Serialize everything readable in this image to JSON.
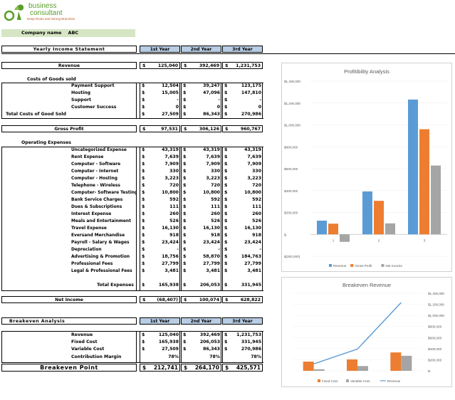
{
  "logo": {
    "line1": "business",
    "line2": "consultant",
    "tagline": "Deep Roots and Strong Branches",
    "brand_mark": "oak"
  },
  "company": {
    "label": "Company name",
    "value": "ABC"
  },
  "income": {
    "title": "Yearly Income Statement",
    "years": [
      "1st Year",
      "2nd Year",
      "3rd Year"
    ],
    "revenue": {
      "label": "Revenue",
      "values": [
        "125,040",
        "392,469",
        "1,231,753"
      ]
    },
    "costs_heading": "Costs of Goods sold",
    "cogs_items": [
      {
        "label": "Payment Support",
        "values": [
          "12,504",
          "39,247",
          "123,175"
        ]
      },
      {
        "label": "Hosting",
        "values": [
          "15,005",
          "47,096",
          "147,810"
        ]
      },
      {
        "label": "Support",
        "values": [
          "-",
          "-",
          "-"
        ]
      },
      {
        "label": "Customer Success",
        "values": [
          "0",
          "0",
          "0"
        ]
      }
    ],
    "total_cogs": {
      "label": "Total Costs of Good Sold",
      "values": [
        "27,509",
        "86,343",
        "270,986"
      ]
    },
    "gross_profit": {
      "label": "Gross Profit",
      "values": [
        "97,531",
        "306,126",
        "960,767"
      ]
    },
    "opex_heading": "Operating Expenses",
    "opex_items": [
      {
        "label": "Uncategorized Expense",
        "values": [
          "43,319",
          "43,319",
          "43,319"
        ]
      },
      {
        "label": "Rent Expense",
        "values": [
          "7,639",
          "7,639",
          "7,639"
        ]
      },
      {
        "label": "Computer - Software",
        "values": [
          "7,909",
          "7,909",
          "7,909"
        ]
      },
      {
        "label": "Computer - Internet",
        "values": [
          "330",
          "330",
          "330"
        ]
      },
      {
        "label": "Computer - Hosting",
        "values": [
          "3,223",
          "3,223",
          "3,223"
        ]
      },
      {
        "label": "Telephone - Wireless",
        "values": [
          "720",
          "720",
          "720"
        ]
      },
      {
        "label": "Computer- Software Testing",
        "values": [
          "10,800",
          "10,800",
          "10,800"
        ]
      },
      {
        "label": "Bank Service Charges",
        "values": [
          "592",
          "592",
          "592"
        ]
      },
      {
        "label": "Dues & Subscriptions",
        "values": [
          "111",
          "111",
          "111"
        ]
      },
      {
        "label": "Interest Expense",
        "values": [
          "260",
          "260",
          "260"
        ]
      },
      {
        "label": "Meals and Entertainment",
        "values": [
          "526",
          "526",
          "526"
        ]
      },
      {
        "label": "Travel Expense",
        "values": [
          "16,130",
          "16,130",
          "16,130"
        ]
      },
      {
        "label": "Eversand Merchandise",
        "values": [
          "918",
          "918",
          "918"
        ]
      },
      {
        "label": "Payroll - Salary & Wages",
        "values": [
          "23,424",
          "23,424",
          "23,424"
        ]
      },
      {
        "label": "Depreciation",
        "values": [
          "-",
          "-",
          "-"
        ]
      },
      {
        "label": "Advertising & Promotion",
        "values": [
          "18,756",
          "58,870",
          "184,763"
        ]
      },
      {
        "label": "Professional Fees",
        "values": [
          "27,799",
          "27,799",
          "27,799"
        ]
      },
      {
        "label": "Legal & Professional Fees",
        "values": [
          "3,481",
          "3,481",
          "3,481"
        ]
      }
    ],
    "total_expenses": {
      "label": "Total Expenses",
      "values": [
        "165,938",
        "206,053",
        "331,945"
      ]
    },
    "net_income": {
      "label": "Net Income",
      "values": [
        "(68,407)",
        "100,074",
        "628,822"
      ]
    }
  },
  "breakeven": {
    "title": "Breakeven Analysis",
    "years": [
      "1st Year",
      "2nd Year",
      "3rd Year"
    ],
    "rows": [
      {
        "label": "Revenue",
        "values": [
          "125,040",
          "392,469",
          "1,231,753"
        ]
      },
      {
        "label": "Fixed Cost",
        "values": [
          "165,938",
          "206,053",
          "331,945"
        ]
      },
      {
        "label": "Variable Cost",
        "values": [
          "27,509",
          "86,343",
          "270,986"
        ]
      }
    ],
    "margin": {
      "label": "Contribution Margin",
      "values": [
        "78%",
        "78%",
        "78%"
      ]
    },
    "point": {
      "label": "Breakeven Point",
      "values": [
        "212,741",
        "264,170",
        "425,571"
      ]
    }
  },
  "chart_data": [
    {
      "type": "bar",
      "title": "Profitibility Analysis",
      "categories": [
        "1",
        "2",
        "3"
      ],
      "series": [
        {
          "name": "Revenue",
          "values": [
            125040,
            392469,
            1231753
          ],
          "color": "#5b9bd5"
        },
        {
          "name": "Gross Profit",
          "values": [
            97531,
            306126,
            960767
          ],
          "color": "#ed7d31"
        },
        {
          "name": "Net Income",
          "values": [
            -68407,
            100074,
            628822
          ],
          "color": "#a5a5a5"
        }
      ],
      "ylim": [
        -200000,
        1400000
      ],
      "yticks": [
        "$1,400,000",
        "$1,200,000",
        "$1,000,000",
        "$800,000",
        "$600,000",
        "$400,000",
        "$200,000",
        "$-",
        "$(200,000)"
      ],
      "legend": "bottom"
    },
    {
      "type": "bar",
      "title": "Breakeven Revenue",
      "categories": [
        "1",
        "2",
        "3"
      ],
      "series": [
        {
          "name": "Fixed Cost",
          "values": [
            165938,
            206053,
            331945
          ],
          "color": "#ed7d31",
          "kind": "bar"
        },
        {
          "name": "Variable Cost",
          "values": [
            27509,
            86343,
            270986
          ],
          "color": "#a5a5a5",
          "kind": "bar"
        },
        {
          "name": "Revenue",
          "values": [
            125040,
            392469,
            1231753
          ],
          "color": "#5b9bd5",
          "kind": "line"
        }
      ],
      "ylim": [
        0,
        1400000
      ],
      "yticks": [
        "$1,400,000",
        "$1,200,000",
        "$1,000,000",
        "$800,000",
        "$600,000",
        "$400,000",
        "$200,000",
        "$-"
      ],
      "legend": "bottom"
    }
  ]
}
